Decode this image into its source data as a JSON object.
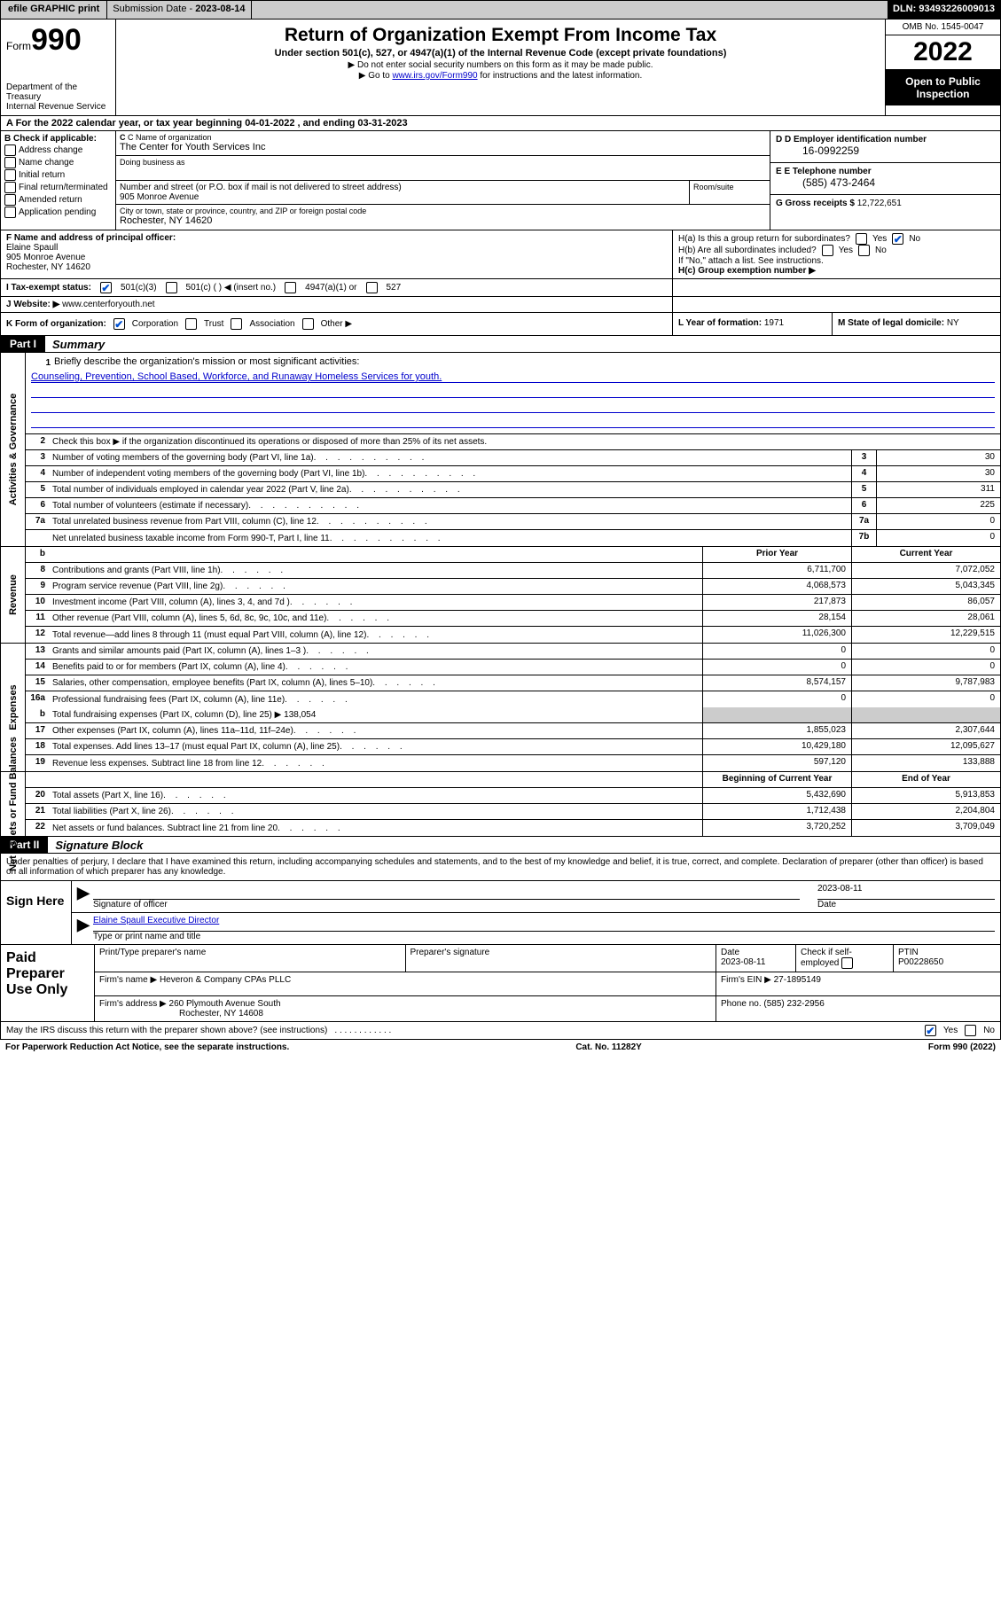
{
  "topbar": {
    "efile_btn": "efile GRAPHIC print",
    "submission_lbl": "Submission Date - ",
    "submission_val": "2023-08-14",
    "dln_lbl": "DLN: ",
    "dln_val": "93493226009013"
  },
  "header": {
    "form_word": "Form",
    "form_num": "990",
    "dept": "Department of the Treasury",
    "irs": "Internal Revenue Service",
    "title": "Return of Organization Exempt From Income Tax",
    "sub": "Under section 501(c), 527, or 4947(a)(1) of the Internal Revenue Code (except private foundations)",
    "arrow1": "▶ Do not enter social security numbers on this form as it may be made public.",
    "arrow2_pre": "▶ Go to ",
    "arrow2_link": "www.irs.gov/Form990",
    "arrow2_post": " for instructions and the latest information.",
    "omb": "OMB No. 1545-0047",
    "year": "2022",
    "inspect": "Open to Public Inspection"
  },
  "lineA": "A For the 2022 calendar year, or tax year beginning 04-01-2022   , and ending 03-31-2023",
  "colB": {
    "hdr": "B Check if applicable:",
    "items": [
      "Address change",
      "Name change",
      "Initial return",
      "Final return/terminated",
      "Amended return",
      "Application pending"
    ]
  },
  "colC": {
    "name_lbl": "C Name of organization",
    "name_val": "The Center for Youth Services Inc",
    "dba_lbl": "Doing business as",
    "street_lbl": "Number and street (or P.O. box if mail is not delivered to street address)",
    "street_val": "905 Monroe Avenue",
    "room_lbl": "Room/suite",
    "city_lbl": "City or town, state or province, country, and ZIP or foreign postal code",
    "city_val": "Rochester, NY  14620"
  },
  "colD": {
    "ein_lbl": "D Employer identification number",
    "ein_val": "16-0992259",
    "tel_lbl": "E Telephone number",
    "tel_val": "(585) 473-2464",
    "gross_lbl": "G Gross receipts $ ",
    "gross_val": "12,722,651"
  },
  "rowF": {
    "F_lbl": "F  Name and address of principal officer:",
    "F_name": "Elaine Spaull",
    "F_addr1": "905 Monroe Avenue",
    "F_addr2": "Rochester, NY  14620",
    "Ha_lbl": "H(a)  Is this a group return for subordinates?",
    "Ha_yes": "Yes",
    "Ha_no": "No",
    "Hb_lbl": "H(b)  Are all subordinates included?",
    "Hb_yes": "Yes",
    "Hb_no": "No",
    "Hb_note": "If \"No,\" attach a list. See instructions.",
    "Hc_lbl": "H(c)  Group exemption number ▶"
  },
  "rowI": {
    "I_lbl": "I   Tax-exempt status:",
    "opt1": "501(c)(3)",
    "opt2": "501(c) (   ) ◀ (insert no.)",
    "opt3": "4947(a)(1) or",
    "opt4": "527"
  },
  "rowJ": {
    "J_lbl": "J   Website: ▶ ",
    "J_val": "www.centerforyouth.net"
  },
  "rowK": {
    "K_lbl": "K Form of organization:",
    "opts": [
      "Corporation",
      "Trust",
      "Association",
      "Other ▶"
    ],
    "L_lbl": "L Year of formation: ",
    "L_val": "1971",
    "M_lbl": "M State of legal domicile: ",
    "M_val": "NY"
  },
  "partI": {
    "hdr": "Part I",
    "title": "Summary"
  },
  "sumSections": {
    "gov": "Activities & Governance",
    "rev": "Revenue",
    "exp": "Expenses",
    "net": "Net Assets or Fund Balances"
  },
  "l1": {
    "num": "1",
    "desc": "Briefly describe the organization's mission or most significant activities:",
    "val": "Counseling, Prevention, School Based, Workforce, and Runaway Homeless Services for youth."
  },
  "l2": {
    "num": "2",
    "desc": "Check this box ▶        if the organization discontinued its operations or disposed of more than 25% of its net assets."
  },
  "twoCol": [
    {
      "n": "3",
      "d": "Number of voting members of the governing body (Part VI, line 1a)",
      "c": "3",
      "v": "30"
    },
    {
      "n": "4",
      "d": "Number of independent voting members of the governing body (Part VI, line 1b)",
      "c": "4",
      "v": "30"
    },
    {
      "n": "5",
      "d": "Total number of individuals employed in calendar year 2022 (Part V, line 2a)",
      "c": "5",
      "v": "311"
    },
    {
      "n": "6",
      "d": "Total number of volunteers (estimate if necessary)",
      "c": "6",
      "v": "225"
    },
    {
      "n": "7a",
      "d": "Total unrelated business revenue from Part VIII, column (C), line 12",
      "c": "7a",
      "v": "0"
    },
    {
      "n": "",
      "d": "Net unrelated business taxable income from Form 990-T, Part I, line 11",
      "c": "7b",
      "v": "0"
    }
  ],
  "pyHdr": {
    "b": "b",
    "prior": "Prior Year",
    "curr": "Current Year"
  },
  "rev": [
    {
      "n": "8",
      "d": "Contributions and grants (Part VIII, line 1h)",
      "p": "6,711,700",
      "c": "7,072,052"
    },
    {
      "n": "9",
      "d": "Program service revenue (Part VIII, line 2g)",
      "p": "4,068,573",
      "c": "5,043,345"
    },
    {
      "n": "10",
      "d": "Investment income (Part VIII, column (A), lines 3, 4, and 7d )",
      "p": "217,873",
      "c": "86,057"
    },
    {
      "n": "11",
      "d": "Other revenue (Part VIII, column (A), lines 5, 6d, 8c, 9c, 10c, and 11e)",
      "p": "28,154",
      "c": "28,061"
    },
    {
      "n": "12",
      "d": "Total revenue—add lines 8 through 11 (must equal Part VIII, column (A), line 12)",
      "p": "11,026,300",
      "c": "12,229,515"
    }
  ],
  "exp": [
    {
      "n": "13",
      "d": "Grants and similar amounts paid (Part IX, column (A), lines 1–3 )",
      "p": "0",
      "c": "0"
    },
    {
      "n": "14",
      "d": "Benefits paid to or for members (Part IX, column (A), line 4)",
      "p": "0",
      "c": "0"
    },
    {
      "n": "15",
      "d": "Salaries, other compensation, employee benefits (Part IX, column (A), lines 5–10)",
      "p": "8,574,157",
      "c": "9,787,983"
    },
    {
      "n": "16a",
      "d": "Professional fundraising fees (Part IX, column (A), line 11e)",
      "p": "0",
      "c": "0"
    }
  ],
  "l16b": {
    "n": "b",
    "d": "Total fundraising expenses (Part IX, column (D), line 25) ▶",
    "v": "138,054"
  },
  "exp2": [
    {
      "n": "17",
      "d": "Other expenses (Part IX, column (A), lines 11a–11d, 11f–24e)",
      "p": "1,855,023",
      "c": "2,307,644"
    },
    {
      "n": "18",
      "d": "Total expenses. Add lines 13–17 (must equal Part IX, column (A), line 25)",
      "p": "10,429,180",
      "c": "12,095,627"
    },
    {
      "n": "19",
      "d": "Revenue less expenses. Subtract line 18 from line 12",
      "p": "597,120",
      "c": "133,888"
    }
  ],
  "netHdr": {
    "p": "Beginning of Current Year",
    "c": "End of Year"
  },
  "net": [
    {
      "n": "20",
      "d": "Total assets (Part X, line 16)",
      "p": "5,432,690",
      "c": "5,913,853"
    },
    {
      "n": "21",
      "d": "Total liabilities (Part X, line 26)",
      "p": "1,712,438",
      "c": "2,204,804"
    },
    {
      "n": "22",
      "d": "Net assets or fund balances. Subtract line 21 from line 20",
      "p": "3,720,252",
      "c": "3,709,049"
    }
  ],
  "partII": {
    "hdr": "Part II",
    "title": "Signature Block"
  },
  "penalty": "Under penalties of perjury, I declare that I have examined this return, including accompanying schedules and statements, and to the best of my knowledge and belief, it is true, correct, and complete. Declaration of preparer (other than officer) is based on all information of which preparer has any knowledge.",
  "sign": {
    "here": "Sign Here",
    "sig_lbl": "Signature of officer",
    "date_lbl": "Date",
    "date_val": "2023-08-11",
    "name_val": "Elaine Spaull  Executive Director",
    "name_lbl": "Type or print name and title"
  },
  "prep": {
    "hdr": "Paid Preparer Use Only",
    "r1": {
      "name_lbl": "Print/Type preparer's name",
      "sig_lbl": "Preparer's signature",
      "date_lbl": "Date",
      "date_val": "2023-08-11",
      "chk_lbl": "Check         if self-employed",
      "ptin_lbl": "PTIN",
      "ptin_val": "P00228650"
    },
    "r2": {
      "firm_lbl": "Firm's name    ▶ ",
      "firm_val": "Heveron & Company CPAs PLLC",
      "ein_lbl": "Firm's EIN ▶ ",
      "ein_val": "27-1895149"
    },
    "r3": {
      "addr_lbl": "Firm's address ▶ ",
      "addr_val1": "260 Plymouth Avenue South",
      "addr_val2": "Rochester, NY  14608",
      "phone_lbl": "Phone no. ",
      "phone_val": "(585) 232-2956"
    }
  },
  "discuss": {
    "txt": "May the IRS discuss this return with the preparer shown above? (see instructions)",
    "yes": "Yes",
    "no": "No"
  },
  "footer": {
    "l": "For Paperwork Reduction Act Notice, see the separate instructions.",
    "c": "Cat. No. 11282Y",
    "r": "Form 990 (2022)"
  }
}
